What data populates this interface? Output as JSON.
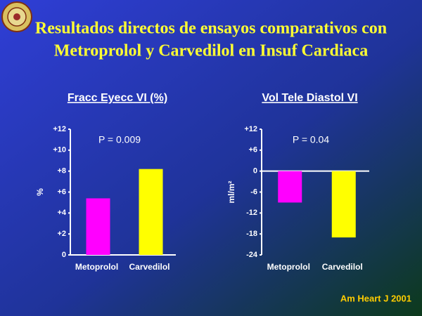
{
  "header": {
    "title_lines": [
      "Resultados directos de ensayos comparativos con",
      "Metroprolol y Carvedilol en Insuf Cardiaca"
    ],
    "source": "Am Heart J 2001"
  },
  "chart_data": [
    {
      "type": "bar",
      "title": "Fracc Eyecc VI (%)",
      "y_label": "%",
      "annotation": "P = 0.009",
      "categories": [
        "Metoprolol",
        "Carvedilol"
      ],
      "values": [
        5.4,
        8.2
      ],
      "colors": [
        "#ff00ff",
        "#ffff00"
      ],
      "ylim": [
        0,
        12
      ],
      "yticks": [
        0,
        {
          "value": 2,
          "label": "+2"
        },
        {
          "value": 4,
          "label": "+4"
        },
        {
          "value": 6,
          "label": "+6"
        },
        {
          "value": 8,
          "label": "+8"
        },
        {
          "value": 10,
          "label": "+10"
        },
        {
          "value": 12,
          "label": "+12"
        }
      ]
    },
    {
      "type": "bar",
      "title": "Vol Tele Diastol VI",
      "y_label": "ml/m²",
      "annotation": "P = 0.04",
      "categories": [
        "Metoprolol",
        "Carvedilol"
      ],
      "values": [
        -9,
        -19
      ],
      "colors": [
        "#ff00ff",
        "#ffff00"
      ],
      "ylim": [
        -24,
        12
      ],
      "yticks": [
        -24,
        -18,
        -12,
        -6,
        0,
        {
          "value": 6,
          "label": "+6"
        },
        {
          "value": 12,
          "label": "+12"
        }
      ]
    }
  ]
}
